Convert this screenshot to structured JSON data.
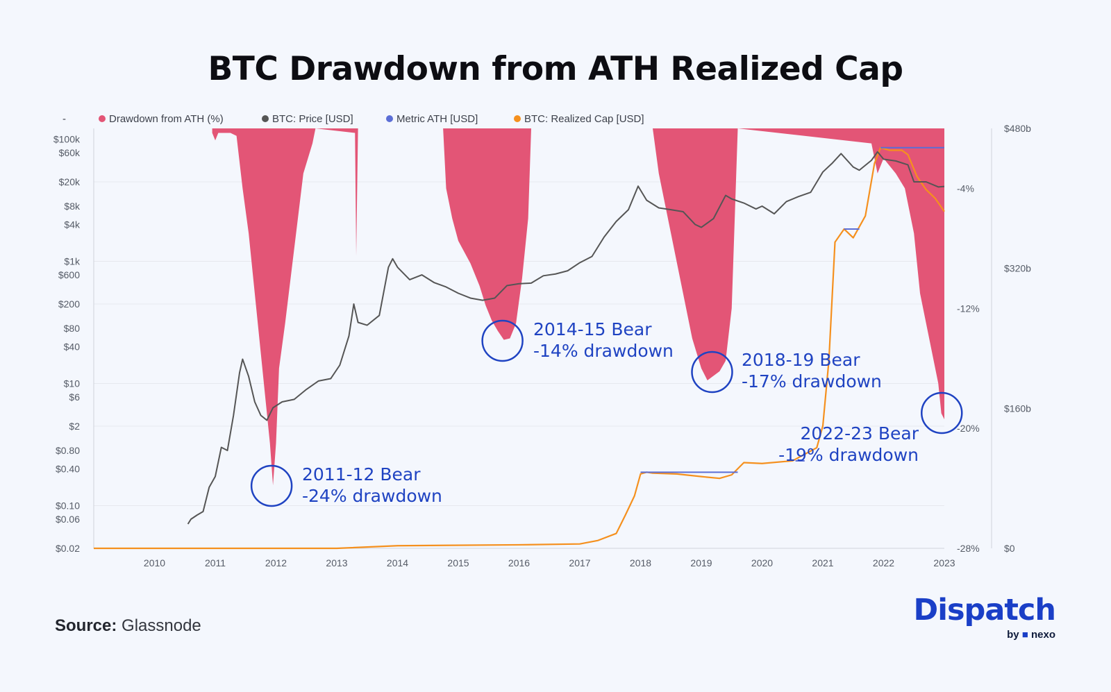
{
  "title": "BTC Drawdown from ATH Realized Cap",
  "source": {
    "label": "Source:",
    "value": "Glassnode"
  },
  "brand": {
    "name": "Dispatch",
    "by": "by",
    "partner": "nexo"
  },
  "colors": {
    "drawdown": "#e35576",
    "price": "#555555",
    "ath": "#5b6ed6",
    "realized": "#f5901e",
    "annotation": "#1f43c2",
    "grid": "#e6e8ee"
  },
  "chart_data": {
    "type": "area",
    "title": "BTC Drawdown from ATH Realized Cap",
    "legend": [
      {
        "label": "-",
        "color": "#777777",
        "marker": "none"
      },
      {
        "label": "Drawdown from ATH (%)",
        "color": "#e35576"
      },
      {
        "label": "BTC: Price [USD]",
        "color": "#555555"
      },
      {
        "label": "Metric ATH [USD]",
        "color": "#5b6ed6"
      },
      {
        "label": "BTC: Realized Cap [USD]",
        "color": "#f5901e"
      }
    ],
    "x_ticks": [
      "2010",
      "2011",
      "2012",
      "2013",
      "2014",
      "2015",
      "2016",
      "2017",
      "2018",
      "2019",
      "2020",
      "2021",
      "2022",
      "2023"
    ],
    "xlim": [
      2009.0,
      2023.0
    ],
    "y_price_ticks": [
      "$100k",
      "$60k",
      "$20k",
      "$8k",
      "$4k",
      "$1k",
      "$600",
      "$200",
      "$80",
      "$40",
      "$10",
      "$6",
      "$2",
      "$0.80",
      "$0.40",
      "$0.10",
      "$0.06",
      "$0.02"
    ],
    "y_price_tick_values": [
      100000,
      60000,
      20000,
      8000,
      4000,
      1000,
      600,
      200,
      80,
      40,
      10,
      6,
      2,
      0.8,
      0.4,
      0.1,
      0.06,
      0.02
    ],
    "y_price_range": [
      0.02,
      150000
    ],
    "y_drawdown_ticks": [
      "-4%",
      "-12%",
      "-20%",
      "-28%"
    ],
    "y_drawdown_tick_values": [
      -4,
      -12,
      -20,
      -28
    ],
    "y_drawdown_range": [
      0,
      -28
    ],
    "y_realized_ticks": [
      "$480b",
      "$320b",
      "$160b",
      "$0"
    ],
    "y_realized_tick_values": [
      480,
      320,
      160,
      0
    ],
    "y_realized_range": [
      0,
      480
    ],
    "series": [
      {
        "name": "BTC: Price [USD]",
        "x": [
          2010.55,
          2010.6,
          2010.7,
          2010.8,
          2010.9,
          2011.0,
          2011.1,
          2011.2,
          2011.3,
          2011.4,
          2011.45,
          2011.55,
          2011.65,
          2011.75,
          2011.85,
          2011.95,
          2012.1,
          2012.3,
          2012.5,
          2012.7,
          2012.9,
          2013.05,
          2013.2,
          2013.28,
          2013.35,
          2013.5,
          2013.7,
          2013.85,
          2013.92,
          2014.0,
          2014.2,
          2014.4,
          2014.6,
          2014.8,
          2015.0,
          2015.2,
          2015.4,
          2015.6,
          2015.8,
          2016.0,
          2016.2,
          2016.4,
          2016.6,
          2016.8,
          2017.0,
          2017.2,
          2017.4,
          2017.6,
          2017.8,
          2017.96,
          2018.1,
          2018.3,
          2018.5,
          2018.7,
          2018.9,
          2019.0,
          2019.2,
          2019.4,
          2019.5,
          2019.7,
          2019.9,
          2020.0,
          2020.2,
          2020.4,
          2020.6,
          2020.8,
          2021.0,
          2021.15,
          2021.3,
          2021.5,
          2021.6,
          2021.8,
          2021.9,
          2022.0,
          2022.2,
          2022.4,
          2022.5,
          2022.7,
          2022.9,
          2023.0
        ],
        "values": [
          0.05,
          0.06,
          0.07,
          0.08,
          0.2,
          0.3,
          0.9,
          0.8,
          3,
          15,
          25,
          13,
          5,
          3,
          2.5,
          4,
          5,
          5.5,
          8,
          11,
          12,
          20,
          60,
          200,
          100,
          90,
          130,
          800,
          1100,
          800,
          500,
          600,
          450,
          380,
          300,
          250,
          230,
          250,
          400,
          430,
          440,
          580,
          620,
          700,
          950,
          1200,
          2500,
          4500,
          7000,
          17000,
          10000,
          7500,
          7000,
          6500,
          4000,
          3600,
          5000,
          12000,
          10500,
          9000,
          7200,
          8000,
          6000,
          9500,
          11500,
          13500,
          29000,
          40000,
          58000,
          35000,
          31000,
          45000,
          62000,
          47000,
          44000,
          38000,
          20000,
          20000,
          16500,
          16800
        ]
      },
      {
        "name": "BTC: Realized Cap [USD]",
        "unit": "billion USD",
        "x": [
          2009.0,
          2013.0,
          2014.0,
          2016.0,
          2017.0,
          2017.3,
          2017.6,
          2017.75,
          2017.9,
          2018.0,
          2018.1,
          2018.2,
          2018.6,
          2019.0,
          2019.3,
          2019.5,
          2019.7,
          2020.0,
          2020.5,
          2020.9,
          2021.0,
          2021.1,
          2021.2,
          2021.35,
          2021.5,
          2021.7,
          2021.85,
          2021.95,
          2022.1,
          2022.3,
          2022.4,
          2022.55,
          2022.7,
          2022.85,
          2023.0
        ],
        "values": [
          0,
          0,
          3,
          4,
          5,
          9,
          17,
          38,
          60,
          85,
          87,
          86,
          85,
          82,
          80,
          84,
          98,
          97,
          100,
          115,
          140,
          215,
          350,
          365,
          355,
          380,
          440,
          458,
          455,
          455,
          450,
          425,
          410,
          400,
          385
        ]
      },
      {
        "name": "Metric ATH [USD]",
        "unit": "billion USD",
        "segments": [
          {
            "x": [
              2018.0,
              2019.6
            ],
            "value": 87
          },
          {
            "x": [
              2020.55,
              2020.7
            ],
            "value": 100
          },
          {
            "x": [
              2021.35,
              2021.6
            ],
            "value": 365
          },
          {
            "x": [
              2021.95,
              2023.0
            ],
            "value": 458
          }
        ]
      },
      {
        "name": "Drawdown from ATH (%)",
        "unit": "%",
        "x": [
          2010.95,
          2011.0,
          2011.05,
          2011.25,
          2011.35,
          2011.45,
          2011.55,
          2011.65,
          2011.75,
          2011.8,
          2011.85,
          2011.9,
          2011.95,
          2012.0,
          2012.05,
          2012.15,
          2012.3,
          2012.45,
          2012.6,
          2012.65,
          2013.3,
          2013.32,
          2013.35,
          2014.75,
          2014.8,
          2014.9,
          2015.0,
          2015.2,
          2015.35,
          2015.45,
          2015.55,
          2015.65,
          2015.75,
          2015.85,
          2015.95,
          2016.05,
          2016.15,
          2016.2,
          2018.2,
          2018.3,
          2018.5,
          2018.7,
          2018.85,
          2019.0,
          2019.1,
          2019.2,
          2019.3,
          2019.4,
          2019.5,
          2019.55,
          2019.6,
          2021.8,
          2021.9,
          2022.0,
          2022.2,
          2022.35,
          2022.5,
          2022.6,
          2022.7,
          2022.8,
          2022.9,
          2022.95,
          2023.0
        ],
        "values": [
          -0.3,
          -0.8,
          -0.3,
          -0.3,
          -0.5,
          -4,
          -7,
          -11,
          -15,
          -17,
          -19,
          -21,
          -23.8,
          -21,
          -16,
          -13,
          -8,
          -3,
          -1,
          0,
          -0.3,
          -8.5,
          0,
          0,
          -4,
          -6,
          -7.5,
          -9,
          -10.5,
          -11.8,
          -12.8,
          -13.5,
          -14.1,
          -14,
          -13,
          -10,
          -6,
          0,
          0,
          -3,
          -7,
          -11,
          -14,
          -16,
          -16.8,
          -16.5,
          -16.2,
          -15.5,
          -12,
          -6,
          0,
          -1,
          -3,
          -2,
          -3,
          -4,
          -7,
          -11,
          -13,
          -15,
          -17,
          -19,
          -19.4
        ]
      }
    ],
    "annotations": [
      {
        "label": "2011-12 Bear",
        "sub": "-24% drawdown",
        "x": 2011.95
      },
      {
        "label": "2014-15 Bear",
        "sub": "-14% drawdown",
        "x": 2015.75
      },
      {
        "label": "2018-19 Bear",
        "sub": "-17% drawdown",
        "x": 2019.2
      },
      {
        "label": "2022-23 Bear",
        "sub": "-19% drawdown",
        "x": 2022.98
      }
    ]
  }
}
